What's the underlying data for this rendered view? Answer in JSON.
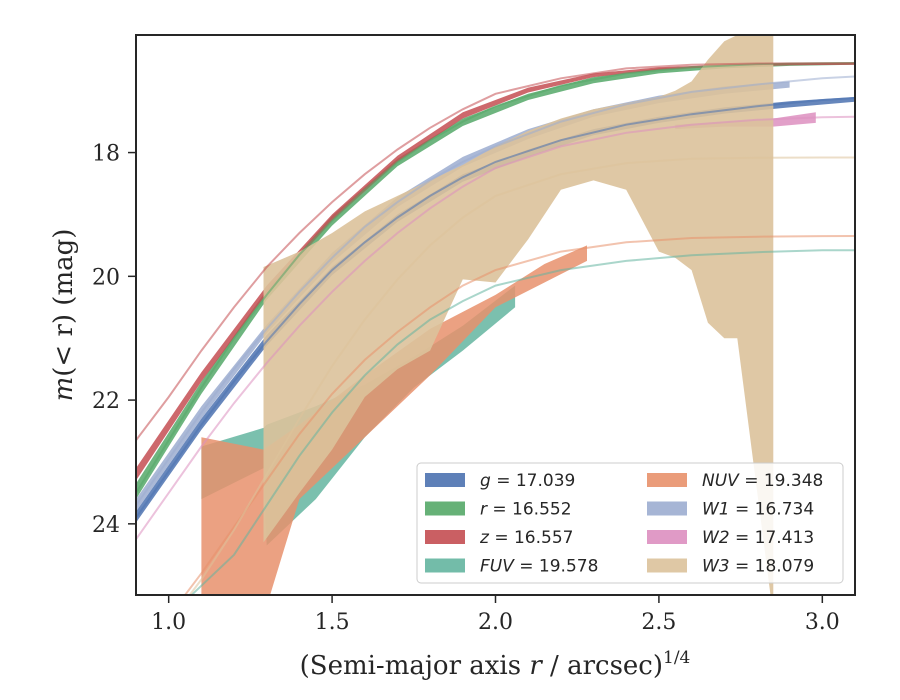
{
  "chart_data": {
    "type": "line",
    "xlabel": "(Semi-major axis r / arcsec)1/4",
    "xlabel_parts": {
      "main": "(Semi-major axis ",
      "var": "r",
      "rest": " / arcsec)",
      "sup": "1/4"
    },
    "ylabel": "m(< r) (mag)",
    "ylabel_parts": {
      "main": "m",
      "rest": "(< r) (mag)"
    },
    "xlim": [
      0.9,
      3.1
    ],
    "ylim": [
      25.15,
      16.1
    ],
    "y_inverted": true,
    "grid": false,
    "legend_position": "lower-right",
    "x_ticks": [
      1.0,
      1.5,
      2.0,
      2.5,
      3.0
    ],
    "x_tick_labels": [
      "1.0",
      "1.5",
      "2.0",
      "2.5",
      "3.0"
    ],
    "y_ticks": [
      18,
      20,
      22,
      24
    ],
    "y_tick_labels": [
      "18",
      "20",
      "22",
      "24"
    ],
    "series": [
      {
        "name": "g = 17.039",
        "label_var": "g",
        "label_value": "17.039",
        "color": "#4c72b0",
        "x": [
          0.9,
          1.0,
          1.1,
          1.2,
          1.3,
          1.4,
          1.5,
          1.6,
          1.7,
          1.8,
          1.9,
          2.0,
          2.2,
          2.4,
          2.6,
          2.8,
          3.0,
          3.1
        ],
        "y": [
          23.9,
          23.15,
          22.4,
          21.7,
          21.05,
          20.45,
          19.9,
          19.45,
          19.05,
          18.7,
          18.4,
          18.15,
          17.8,
          17.55,
          17.38,
          17.25,
          17.15,
          17.12
        ],
        "band_x": [
          0.9,
          1.1,
          1.3,
          1.5,
          1.7,
          1.9,
          2.1,
          2.3,
          2.5,
          2.7,
          2.9,
          3.1
        ],
        "band_lo": [
          23.8,
          22.3,
          20.95,
          19.85,
          19.0,
          18.35,
          17.95,
          17.62,
          17.42,
          17.27,
          17.17,
          17.1
        ],
        "band_hi": [
          23.98,
          22.48,
          21.12,
          19.98,
          19.12,
          18.47,
          18.07,
          17.72,
          17.52,
          17.37,
          17.27,
          17.18
        ]
      },
      {
        "name": "r = 16.552",
        "label_var": "r",
        "label_value": "16.552",
        "color": "#55a868",
        "x": [
          0.9,
          1.0,
          1.1,
          1.2,
          1.3,
          1.4,
          1.5,
          1.6,
          1.7,
          1.8,
          1.9,
          2.0,
          2.2,
          2.4,
          2.6,
          2.8,
          3.0,
          3.1
        ],
        "y": [
          23.5,
          22.65,
          21.8,
          21.0,
          20.3,
          19.65,
          19.1,
          18.6,
          18.15,
          17.8,
          17.5,
          17.25,
          16.92,
          16.72,
          16.62,
          16.57,
          16.555,
          16.552
        ],
        "band_x": [
          0.9,
          1.1,
          1.3,
          1.5,
          1.7,
          1.9,
          2.1,
          2.3,
          2.5,
          2.7,
          2.9,
          3.1
        ],
        "band_lo": [
          23.35,
          21.7,
          20.22,
          19.02,
          18.1,
          17.45,
          17.05,
          16.78,
          16.64,
          16.58,
          16.55,
          16.54
        ],
        "band_hi": [
          23.6,
          21.9,
          20.38,
          19.18,
          18.22,
          17.57,
          17.15,
          16.88,
          16.72,
          16.64,
          16.6,
          16.58
        ]
      },
      {
        "name": "z = 16.557",
        "label_var": "z",
        "label_value": "16.557",
        "color": "#c44e52",
        "x": [
          0.9,
          1.0,
          1.1,
          1.2,
          1.3,
          1.4,
          1.5,
          1.6,
          1.7,
          1.8,
          1.9,
          2.0,
          2.2,
          2.4,
          2.6,
          2.8,
          3.0,
          3.1
        ],
        "y": [
          22.65,
          21.95,
          21.2,
          20.5,
          19.85,
          19.3,
          18.8,
          18.35,
          17.95,
          17.6,
          17.3,
          17.05,
          16.8,
          16.64,
          16.58,
          16.56,
          16.557,
          16.557
        ],
        "band_x": [
          0.9,
          1.1,
          1.3,
          1.5,
          1.7,
          1.9,
          2.1,
          2.3,
          2.5,
          2.7,
          2.9,
          3.1
        ],
        "band_lo": [
          23.1,
          21.55,
          20.15,
          19.0,
          18.05,
          17.35,
          16.95,
          16.72,
          16.62,
          16.58,
          16.56,
          16.55
        ],
        "band_hi": [
          23.3,
          21.7,
          20.28,
          19.1,
          18.15,
          17.45,
          17.03,
          16.78,
          16.66,
          16.61,
          16.59,
          16.58
        ]
      },
      {
        "name": "FUV = 19.578",
        "label_var": "FUV",
        "label_value": "19.578",
        "color": "#64b5a0",
        "x": [
          0.9,
          1.0,
          1.1,
          1.2,
          1.3,
          1.4,
          1.5,
          1.6,
          1.7,
          1.8,
          1.9,
          2.0,
          2.2,
          2.4,
          2.6,
          2.8,
          3.0,
          3.1
        ],
        "y": [
          26.0,
          25.5,
          25.0,
          24.5,
          23.7,
          22.9,
          22.2,
          21.6,
          21.1,
          20.7,
          20.4,
          20.15,
          19.9,
          19.75,
          19.66,
          19.61,
          19.58,
          19.578
        ],
        "band_x": [
          1.1,
          1.29,
          1.3,
          1.45,
          1.6,
          1.75,
          1.9,
          2.06
        ],
        "band_lo": [
          22.75,
          22.45,
          22.4,
          22.1,
          21.75,
          21.3,
          20.8,
          20.15
        ],
        "band_hi": [
          23.6,
          23.1,
          24.35,
          23.6,
          22.6,
          21.8,
          21.2,
          20.5
        ]
      },
      {
        "name": "NUV = 19.348",
        "label_var": "NUV",
        "label_value": "19.348",
        "color": "#e8916c",
        "x": [
          0.9,
          1.0,
          1.1,
          1.2,
          1.3,
          1.4,
          1.5,
          1.6,
          1.7,
          1.8,
          1.9,
          2.0,
          2.2,
          2.4,
          2.6,
          2.8,
          3.0,
          3.1
        ],
        "y": [
          26.0,
          25.5,
          24.8,
          24.05,
          23.3,
          22.55,
          21.9,
          21.35,
          20.9,
          20.5,
          20.15,
          19.9,
          19.6,
          19.45,
          19.38,
          19.36,
          19.35,
          19.348
        ],
        "band_x": [
          1.1,
          1.29,
          1.4,
          1.6,
          1.8,
          2.0,
          2.15,
          2.28
        ],
        "band_lo": [
          22.6,
          22.8,
          22.4,
          21.6,
          20.85,
          20.3,
          19.8,
          19.5
        ],
        "band_hi": [
          26.0,
          25.5,
          23.6,
          22.6,
          21.6,
          20.5,
          20.1,
          19.75
        ]
      },
      {
        "name": "W1 = 16.734",
        "label_var": "W1",
        "label_value": "16.734",
        "color": "#9cadd0",
        "x": [
          0.9,
          1.0,
          1.1,
          1.2,
          1.3,
          1.4,
          1.5,
          1.6,
          1.7,
          1.8,
          1.9,
          2.0,
          2.2,
          2.4,
          2.6,
          2.8,
          3.0,
          3.1
        ],
        "y": [
          23.7,
          22.95,
          22.2,
          21.5,
          20.85,
          20.25,
          19.7,
          19.2,
          18.8,
          18.45,
          18.15,
          17.9,
          17.5,
          17.22,
          17.02,
          16.9,
          16.8,
          16.77
        ],
        "band_x": [
          0.9,
          1.1,
          1.3,
          1.5,
          1.7,
          1.9,
          2.1,
          2.3,
          2.5,
          2.7,
          2.9
        ],
        "band_lo": [
          23.6,
          22.1,
          20.78,
          19.62,
          18.72,
          18.07,
          17.62,
          17.3,
          17.08,
          16.93,
          16.85
        ],
        "band_hi": [
          23.8,
          22.3,
          20.92,
          19.78,
          18.88,
          18.23,
          17.78,
          17.42,
          17.2,
          17.05,
          16.95
        ]
      },
      {
        "name": "W2 = 17.413",
        "label_var": "W2",
        "label_value": "17.413",
        "color": "#dd8fc0",
        "x": [
          0.9,
          1.0,
          1.1,
          1.2,
          1.3,
          1.4,
          1.5,
          1.6,
          1.7,
          1.8,
          1.9,
          2.0,
          2.2,
          2.4,
          2.6,
          2.8,
          3.0,
          3.1
        ],
        "y": [
          24.25,
          23.5,
          22.75,
          22.05,
          21.4,
          20.8,
          20.25,
          19.75,
          19.3,
          18.9,
          18.55,
          18.25,
          17.9,
          17.68,
          17.55,
          17.47,
          17.43,
          17.42
        ],
        "band_x": [
          2.55,
          2.7,
          2.85,
          2.98
        ],
        "band_lo": [
          17.55,
          17.5,
          17.45,
          17.35
        ],
        "band_hi": [
          17.62,
          17.58,
          17.58,
          17.52
        ]
      },
      {
        "name": "W3 = 18.079",
        "label_var": "W3",
        "label_value": "18.079",
        "color": "#dcc29b",
        "x": [
          0.9,
          1.0,
          1.1,
          1.2,
          1.3,
          1.4,
          1.5,
          1.6,
          1.7,
          1.8,
          1.9,
          2.0,
          2.2,
          2.4,
          2.6,
          2.8,
          3.0,
          3.1
        ],
        "y": [
          26.0,
          25.6,
          24.9,
          24.1,
          23.2,
          22.3,
          21.45,
          20.7,
          20.05,
          19.5,
          19.05,
          18.7,
          18.35,
          18.17,
          18.1,
          18.085,
          18.08,
          18.079
        ],
        "band_x": [
          1.29,
          1.4,
          1.5,
          1.6,
          1.7,
          1.8,
          1.9,
          2.0,
          2.1,
          2.2,
          2.3,
          2.4,
          2.5,
          2.55,
          2.6,
          2.65,
          2.7,
          2.74,
          2.85
        ],
        "band_lo": [
          24.3,
          23.5,
          22.8,
          21.95,
          21.5,
          21.2,
          20.05,
          20.1,
          19.4,
          18.6,
          18.45,
          18.6,
          19.6,
          19.7,
          19.9,
          20.75,
          21.0,
          21.0,
          25.5
        ],
        "band_hi": [
          19.85,
          19.6,
          19.3,
          18.95,
          18.7,
          18.45,
          18.2,
          17.9,
          17.65,
          17.45,
          17.3,
          17.2,
          17.1,
          17.0,
          16.85,
          16.5,
          16.2,
          16.1,
          16.1
        ]
      }
    ]
  }
}
